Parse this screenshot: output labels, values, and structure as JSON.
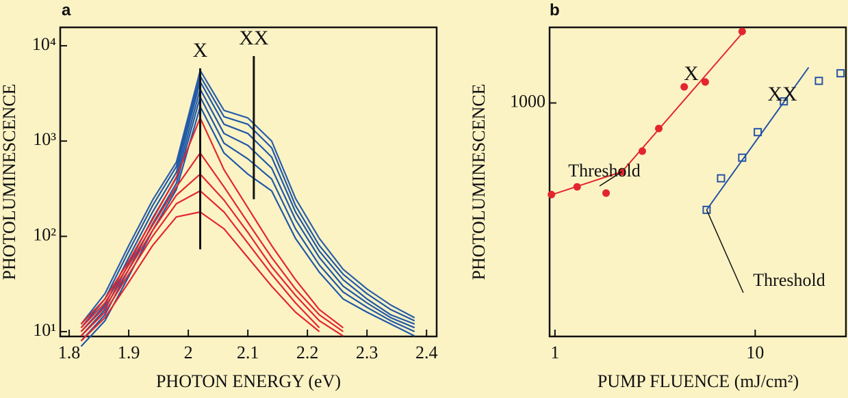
{
  "chart_data": [
    {
      "type": "line",
      "panel": "a",
      "xlabel": "PHOTON ENERGY (eV)",
      "ylabel": "PHOTOLUMINESCENCE",
      "x": [
        1.82,
        1.86,
        1.9,
        1.94,
        1.98,
        2.02,
        2.06,
        2.1,
        2.14,
        2.18,
        2.22,
        2.26,
        2.3,
        2.34,
        2.38
      ],
      "series": [
        {
          "color": "#2a5ea8",
          "values": [
            12,
            25,
            80,
            240,
            600,
            5500,
            2100,
            1750,
            1000,
            250,
            95,
            45,
            28,
            19,
            14
          ]
        },
        {
          "color": "#1f58a6",
          "values": [
            11,
            22,
            70,
            210,
            540,
            4800,
            1800,
            1500,
            850,
            210,
            80,
            40,
            25,
            17,
            13
          ]
        },
        {
          "color": "#1f58a6",
          "values": [
            10,
            19,
            60,
            180,
            470,
            4200,
            1500,
            1200,
            680,
            180,
            70,
            35,
            22,
            15,
            12
          ]
        },
        {
          "color": "#1f58a6",
          "values": [
            9,
            17,
            52,
            155,
            410,
            3500,
            1200,
            900,
            520,
            150,
            60,
            30,
            20,
            14,
            11
          ]
        },
        {
          "color": "#1f58a6",
          "values": [
            8,
            15,
            45,
            135,
            360,
            2900,
            950,
            650,
            400,
            120,
            50,
            26,
            18,
            13,
            10
          ]
        },
        {
          "color": "#1f58a6",
          "values": [
            7,
            13,
            38,
            115,
            310,
            2300,
            750,
            450,
            300,
            95,
            42,
            22,
            16,
            12,
            9
          ]
        },
        {
          "color": "#e3262d",
          "values": [
            12,
            22,
            55,
            150,
            420,
            1750,
            500,
            200,
            80,
            35,
            17,
            11,
            null,
            null,
            null
          ]
        },
        {
          "color": "#e3262d",
          "values": [
            11,
            20,
            50,
            130,
            330,
            750,
            330,
            140,
            60,
            28,
            15,
            10,
            null,
            null,
            null
          ]
        },
        {
          "color": "#e3262d",
          "values": [
            10,
            18,
            45,
            115,
            270,
            450,
            240,
            110,
            48,
            24,
            13,
            9,
            null,
            null,
            null
          ]
        },
        {
          "color": "#e3262d",
          "values": [
            9,
            16,
            40,
            100,
            220,
            300,
            180,
            85,
            40,
            20,
            11,
            null,
            null,
            null,
            null
          ]
        },
        {
          "color": "#e3262d",
          "values": [
            8,
            14,
            33,
            80,
            160,
            180,
            120,
            60,
            30,
            16,
            10,
            null,
            null,
            null,
            null
          ]
        }
      ],
      "lines": [
        {
          "label": "X",
          "x": 2.02,
          "y_range": [
            73,
            5800
          ]
        },
        {
          "label": "XX",
          "x": 2.11,
          "y_range": [
            245,
            7800
          ]
        }
      ],
      "xlim": [
        1.785,
        2.417
      ],
      "xticks": [
        1.8,
        1.9,
        2.0,
        2.1,
        2.2,
        2.3,
        2.4
      ],
      "ylim": [
        8.9,
        15600
      ],
      "ylog": true,
      "yticks": [
        {
          "value": 10,
          "label": "10¹"
        },
        {
          "value": 100,
          "label": "10²"
        },
        {
          "value": 1000,
          "label": "10³"
        },
        {
          "value": 10000,
          "label": "10⁴"
        }
      ]
    },
    {
      "type": "scatter",
      "panel": "b",
      "xlabel": "PUMP FLUENCE (mJ/cm²)",
      "ylabel": "PHOTOLUMINESCENCE",
      "series": [
        {
          "name": "X",
          "color": "#e3262d",
          "marker": "circle",
          "x": [
            0.96,
            1.29,
            1.8,
            2.16,
            2.73,
            3.3,
            4.42,
            5.63,
            8.61
          ],
          "values": [
            181,
            209,
            186,
            277,
            407,
            621,
            1350,
            1480,
            3800
          ],
          "fit": {
            "x": [
              0.94,
              2.16,
              8.6
            ],
            "values": [
              178,
              277,
              3660
            ]
          }
        },
        {
          "name": "XX",
          "color": "#2553a5",
          "marker": "square",
          "x": [
            5.72,
            6.75,
            8.61,
            10.3,
            13.9,
            20.8,
            26.7
          ],
          "values": [
            136,
            245,
            360,
            580,
            1030,
            1510,
            1740
          ],
          "fit": {
            "x": [
              5.72,
              18.5
            ],
            "values": [
              136,
              1940
            ]
          }
        }
      ],
      "annotations": [
        {
          "text": "Threshold",
          "xy": [
            2.16,
            277
          ]
        },
        {
          "text": "Threshold",
          "xy": [
            5.72,
            136
          ]
        }
      ],
      "xlim": [
        0.94,
        28.4
      ],
      "xlog": true,
      "xticks": [
        1,
        10
      ],
      "ylim": [
        12.8,
        4100
      ],
      "ylog": true,
      "yticks": [
        1000
      ]
    }
  ]
}
